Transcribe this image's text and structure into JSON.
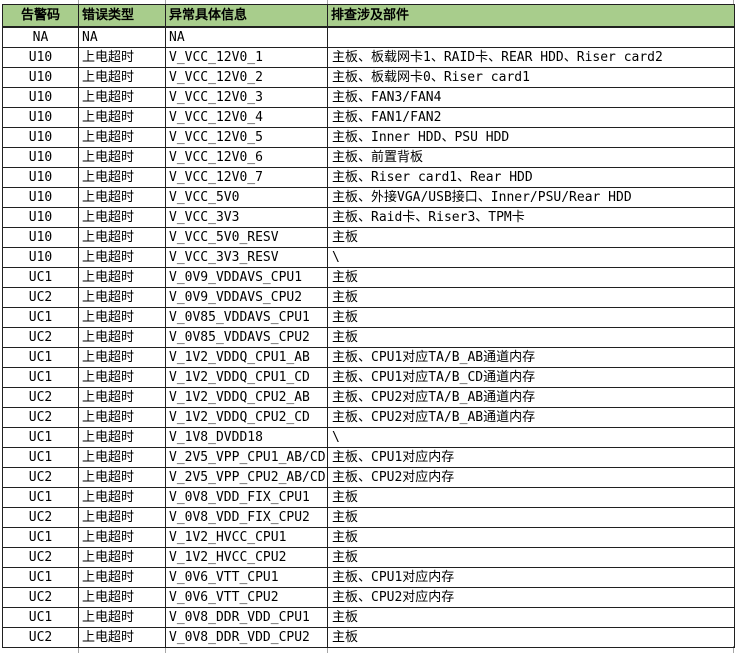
{
  "table": {
    "colors": {
      "header_bg": "#a8cd8c",
      "grid": "#202020",
      "text": "#000000"
    },
    "columns": [
      {
        "label": "告警码"
      },
      {
        "label": "错误类型"
      },
      {
        "label": "异常具体信息"
      },
      {
        "label": "排查涉及部件"
      }
    ],
    "rows": [
      [
        "NA",
        "NA",
        "NA",
        ""
      ],
      [
        "U10",
        "上电超时",
        "V_VCC_12V0_1",
        "主板、板载网卡1、RAID卡、REAR HDD、Riser card2"
      ],
      [
        "U10",
        "上电超时",
        "V_VCC_12V0_2",
        "主板、板载网卡0、Riser card1"
      ],
      [
        "U10",
        "上电超时",
        "V_VCC_12V0_3",
        "主板、FAN3/FAN4"
      ],
      [
        "U10",
        "上电超时",
        "V_VCC_12V0_4",
        "主板、FAN1/FAN2"
      ],
      [
        "U10",
        "上电超时",
        "V_VCC_12V0_5",
        "主板、Inner HDD、PSU HDD"
      ],
      [
        "U10",
        "上电超时",
        "V_VCC_12V0_6",
        "主板、前置背板"
      ],
      [
        "U10",
        "上电超时",
        "V_VCC_12V0_7",
        "主板、Riser card1、Rear HDD"
      ],
      [
        "U10",
        "上电超时",
        "V_VCC_5V0",
        "主板、外接VGA/USB接口、Inner/PSU/Rear HDD"
      ],
      [
        "U10",
        "上电超时",
        "V_VCC_3V3",
        "主板、Raid卡、Riser3、TPM卡"
      ],
      [
        "U10",
        "上电超时",
        "V_VCC_5V0_RESV",
        "主板"
      ],
      [
        "U10",
        "上电超时",
        "V_VCC_3V3_RESV",
        "\\"
      ],
      [
        "UC1",
        "上电超时",
        "V_0V9_VDDAVS_CPU1",
        "主板"
      ],
      [
        "UC2",
        "上电超时",
        "V_0V9_VDDAVS_CPU2",
        "主板"
      ],
      [
        "UC1",
        "上电超时",
        "V_0V85_VDDAVS_CPU1",
        "主板"
      ],
      [
        "UC2",
        "上电超时",
        "V_0V85_VDDAVS_CPU2",
        "主板"
      ],
      [
        "UC1",
        "上电超时",
        "V_1V2_VDDQ_CPU1_AB",
        "主板、CPU1对应TA/B_AB通道内存"
      ],
      [
        "UC1",
        "上电超时",
        "V_1V2_VDDQ_CPU1_CD",
        "主板、CPU1对应TA/B_CD通道内存"
      ],
      [
        "UC2",
        "上电超时",
        "V_1V2_VDDQ_CPU2_AB",
        "主板、CPU2对应TA/B_AB通道内存"
      ],
      [
        "UC2",
        "上电超时",
        "V_1V2_VDDQ_CPU2_CD",
        "主板、CPU2对应TA/B_AB通道内存"
      ],
      [
        "UC1",
        "上电超时",
        "V_1V8_DVDD18",
        "\\"
      ],
      [
        "UC1",
        "上电超时",
        "V_2V5_VPP_CPU1_AB/CD",
        "主板、CPU1对应内存"
      ],
      [
        "UC2",
        "上电超时",
        "V_2V5_VPP_CPU2_AB/CD",
        "主板、CPU2对应内存"
      ],
      [
        "UC1",
        "上电超时",
        "V_0V8_VDD_FIX_CPU1",
        "主板"
      ],
      [
        "UC2",
        "上电超时",
        "V_0V8_VDD_FIX_CPU2",
        "主板"
      ],
      [
        "UC1",
        "上电超时",
        "V_1V2_HVCC_CPU1",
        "主板"
      ],
      [
        "UC2",
        "上电超时",
        "V_1V2_HVCC_CPU2",
        "主板"
      ],
      [
        "UC1",
        "上电超时",
        "V_0V6_VTT_CPU1",
        "主板、CPU1对应内存"
      ],
      [
        "UC2",
        "上电超时",
        "V_0V6_VTT_CPU2",
        "主板、CPU2对应内存"
      ],
      [
        "UC1",
        "上电超时",
        "V_0V8_DDR_VDD_CPU1",
        "主板"
      ],
      [
        "UC2",
        "上电超时",
        "V_0V8_DDR_VDD_CPU2",
        "主板"
      ]
    ]
  }
}
